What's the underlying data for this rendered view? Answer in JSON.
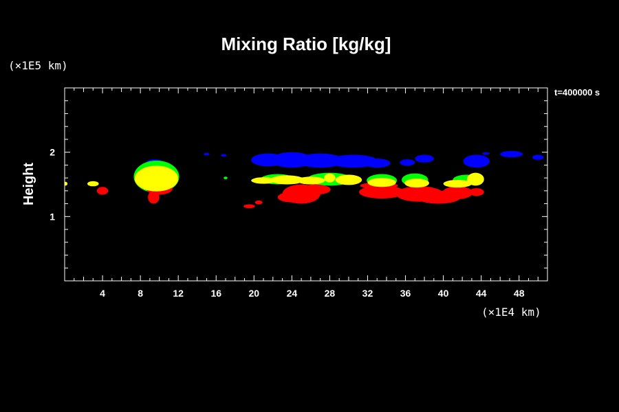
{
  "chart_data": {
    "type": "heatmap",
    "title": "Mixing Ratio [kg/kg]",
    "ylabel": "Height",
    "x_unit": "(×1E4 km)",
    "y_unit": "(×1E5 km)",
    "time_label": "t=400000 s",
    "xlim": [
      0,
      51
    ],
    "ylim": [
      0,
      3
    ],
    "x_major_ticks": [
      4,
      8,
      12,
      16,
      20,
      24,
      28,
      32,
      36,
      40,
      44,
      48
    ],
    "x_tick_labels": [
      "4",
      "8",
      "12",
      "16",
      "20",
      "24",
      "28",
      "32",
      "36",
      "40",
      "44",
      "48"
    ],
    "y_major_ticks": [
      1,
      2
    ],
    "y_tick_labels": [
      "1",
      "2"
    ],
    "grid": false,
    "colors": {
      "background": "#000000",
      "axes": "#ffffff",
      "blue": "#0000ff",
      "green": "#00ff00",
      "yellow": "#ffff00",
      "red": "#ff0000"
    },
    "regions": [
      {
        "color": "blue",
        "blobs": [
          [
            21.5,
            1.88,
            1.8,
            0.1
          ],
          [
            24.0,
            1.88,
            2.2,
            0.12
          ],
          [
            27.0,
            1.87,
            2.5,
            0.11
          ],
          [
            30.5,
            1.86,
            2.6,
            0.1
          ],
          [
            33.0,
            1.83,
            1.4,
            0.07
          ],
          [
            38.0,
            1.9,
            1.0,
            0.06
          ],
          [
            36.2,
            1.84,
            0.8,
            0.05
          ],
          [
            43.5,
            1.86,
            1.4,
            0.1
          ],
          [
            47.2,
            1.97,
            1.2,
            0.05
          ],
          [
            50.0,
            1.92,
            0.6,
            0.04
          ],
          [
            9.5,
            1.84,
            0.9,
            0.05
          ],
          [
            15.0,
            1.97,
            0.3,
            0.02
          ],
          [
            16.8,
            1.95,
            0.3,
            0.02
          ],
          [
            44.5,
            1.98,
            0.4,
            0.02
          ]
        ]
      },
      {
        "color": "green",
        "blobs": [
          [
            9.7,
            1.62,
            2.4,
            0.25
          ],
          [
            28.0,
            1.58,
            2.4,
            0.1
          ],
          [
            33.5,
            1.56,
            1.6,
            0.1
          ],
          [
            42.5,
            1.57,
            1.5,
            0.08
          ],
          [
            37.0,
            1.57,
            1.4,
            0.1
          ],
          [
            17.0,
            1.6,
            0.2,
            0.02
          ],
          [
            22.5,
            1.58,
            1.8,
            0.08
          ]
        ]
      },
      {
        "color": "red",
        "blobs": [
          [
            10.0,
            1.44,
            1.4,
            0.1
          ],
          [
            9.4,
            1.3,
            0.6,
            0.1
          ],
          [
            4.0,
            1.4,
            0.6,
            0.06
          ],
          [
            25.0,
            1.35,
            2.0,
            0.15
          ],
          [
            24.0,
            1.3,
            1.5,
            0.08
          ],
          [
            26.5,
            1.42,
            1.6,
            0.08
          ],
          [
            33.5,
            1.38,
            2.4,
            0.1
          ],
          [
            37.5,
            1.35,
            2.5,
            0.12
          ],
          [
            39.5,
            1.3,
            2.3,
            0.1
          ],
          [
            41.5,
            1.37,
            1.6,
            0.1
          ],
          [
            43.5,
            1.38,
            0.8,
            0.06
          ],
          [
            19.5,
            1.16,
            0.6,
            0.03
          ],
          [
            20.5,
            1.22,
            0.4,
            0.03
          ],
          [
            33.2,
            1.48,
            2.0,
            0.05
          ]
        ]
      },
      {
        "color": "yellow",
        "blobs": [
          [
            9.7,
            1.59,
            2.3,
            0.2
          ],
          [
            3.0,
            1.51,
            0.6,
            0.04
          ],
          [
            0.1,
            1.51,
            0.2,
            0.03
          ],
          [
            21.0,
            1.56,
            1.3,
            0.05
          ],
          [
            23.5,
            1.57,
            1.8,
            0.07
          ],
          [
            26.0,
            1.56,
            1.5,
            0.06
          ],
          [
            28.0,
            1.6,
            0.6,
            0.07
          ],
          [
            30.0,
            1.57,
            1.4,
            0.08
          ],
          [
            33.5,
            1.53,
            1.5,
            0.07
          ],
          [
            37.2,
            1.52,
            1.3,
            0.07
          ],
          [
            41.5,
            1.51,
            1.5,
            0.06
          ],
          [
            43.4,
            1.58,
            0.9,
            0.1
          ]
        ]
      }
    ]
  }
}
